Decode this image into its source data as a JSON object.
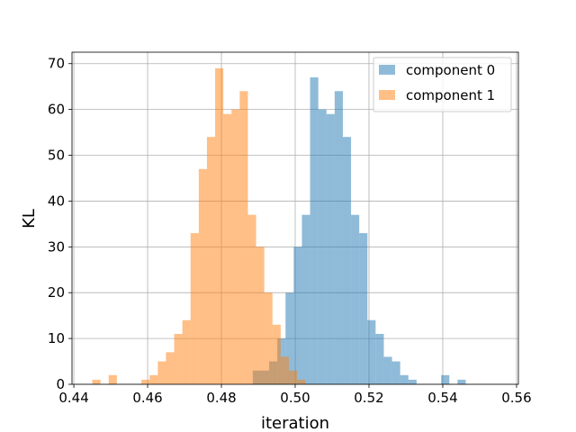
{
  "chart_data": {
    "type": "bar",
    "title": "",
    "xlabel": "iteration",
    "ylabel": "KL",
    "xlim": [
      0.4395,
      0.5605
    ],
    "ylim": [
      0,
      72.5
    ],
    "x_ticks": [
      "0.44",
      "0.46",
      "0.48",
      "0.50",
      "0.52",
      "0.54",
      "0.56"
    ],
    "x_tick_values": [
      0.44,
      0.46,
      0.48,
      0.5,
      0.52,
      0.54,
      0.56
    ],
    "y_ticks": [
      "0",
      "10",
      "20",
      "30",
      "40",
      "50",
      "60",
      "70"
    ],
    "y_tick_values": [
      0,
      10,
      20,
      30,
      40,
      50,
      60,
      70
    ],
    "grid": true,
    "legend_position": "top-right",
    "series": [
      {
        "name": "component 0",
        "color": "#1f77b4",
        "opacity": 0.5,
        "bin_start": 0.4885,
        "bin_width": 0.00222,
        "values": [
          3,
          3,
          5,
          10,
          20,
          30,
          37,
          67,
          60,
          59,
          64,
          54,
          37,
          33,
          14,
          11,
          6,
          5,
          2,
          1,
          0,
          0,
          0,
          2,
          0,
          1
        ]
      },
      {
        "name": "component 1",
        "color": "#ff7f0e",
        "opacity": 0.5,
        "bin_start": 0.445,
        "bin_width": 0.00222,
        "values": [
          1,
          0,
          2,
          0,
          0,
          0,
          1,
          2,
          5,
          7,
          11,
          14,
          33,
          47,
          54,
          69,
          59,
          60,
          64,
          37,
          30,
          20,
          13,
          6,
          3,
          1
        ]
      }
    ]
  }
}
